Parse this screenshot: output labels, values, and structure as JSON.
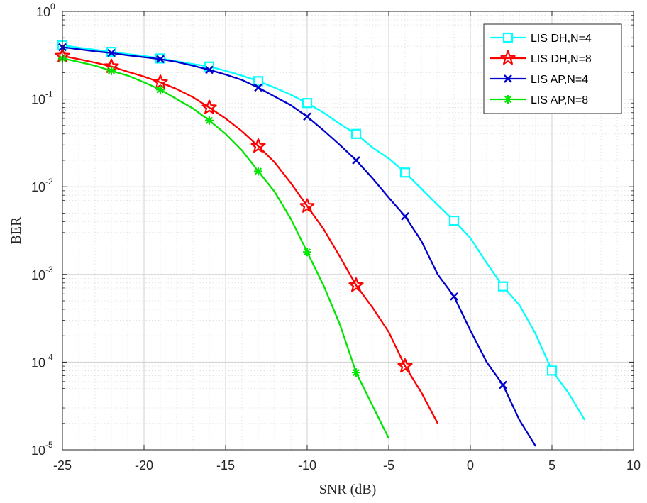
{
  "chart_data": {
    "type": "line",
    "title": "",
    "xlabel": "SNR (dB)",
    "ylabel": "BER",
    "xlim": [
      -25,
      10
    ],
    "ylim": [
      1e-05,
      1
    ],
    "yscale": "log",
    "grid": true,
    "minor_grid": true,
    "legend_position": "top-right",
    "x_ticks": [
      "-25",
      "-20",
      "-15",
      "-10",
      "-5",
      "0",
      "5",
      "10"
    ],
    "y_ticks": [
      {
        "base": "10",
        "exp": "-5"
      },
      {
        "base": "10",
        "exp": "-4"
      },
      {
        "base": "10",
        "exp": "-3"
      },
      {
        "base": "10",
        "exp": "-2"
      },
      {
        "base": "10",
        "exp": "-1"
      },
      {
        "base": "10",
        "exp": "0"
      }
    ],
    "series": [
      {
        "name": "LIS DH,N=4",
        "color": "#00ffff",
        "marker": "square",
        "x": [
          -25,
          -24,
          -23,
          -22,
          -21,
          -20,
          -19,
          -18,
          -17,
          -16,
          -15,
          -14,
          -13,
          -12,
          -11,
          -10,
          -9,
          -8,
          -7,
          -6,
          -5,
          -4,
          -3,
          -2,
          -1,
          0,
          1,
          2,
          3,
          4,
          5,
          6,
          7
        ],
        "y": [
          0.41,
          0.385,
          0.365,
          0.345,
          0.325,
          0.31,
          0.29,
          0.27,
          0.25,
          0.235,
          0.21,
          0.185,
          0.16,
          0.135,
          0.112,
          0.09,
          0.07,
          0.052,
          0.04,
          0.028,
          0.021,
          0.0145,
          0.0095,
          0.0062,
          0.0041,
          0.0026,
          0.00135,
          0.00073,
          0.00045,
          0.00021,
          8e-05,
          4.5e-05,
          2.2e-05
        ],
        "marker_indices": [
          0,
          3,
          6,
          9,
          12,
          15,
          18,
          21,
          24,
          27,
          30
        ]
      },
      {
        "name": "LIS DH,N=8",
        "color": "#ff0000",
        "marker": "pentagram",
        "x": [
          -25,
          -24,
          -23,
          -22,
          -21,
          -20,
          -19,
          -18,
          -17,
          -16,
          -15,
          -14,
          -13,
          -12,
          -11,
          -10,
          -9,
          -8,
          -7,
          -6,
          -5,
          -4,
          -3,
          -2
        ],
        "y": [
          0.31,
          0.285,
          0.26,
          0.235,
          0.205,
          0.18,
          0.155,
          0.13,
          0.105,
          0.08,
          0.06,
          0.043,
          0.029,
          0.019,
          0.011,
          0.006,
          0.0033,
          0.0016,
          0.00075,
          0.00042,
          0.00022,
          9e-05,
          4.5e-05,
          2e-05
        ],
        "marker_indices": [
          0,
          3,
          6,
          9,
          12,
          15,
          18,
          21
        ]
      },
      {
        "name": "LIS AP,N=4",
        "color": "#0000cd",
        "marker": "x",
        "x": [
          -25,
          -24,
          -23,
          -22,
          -21,
          -20,
          -19,
          -18,
          -17,
          -16,
          -15,
          -14,
          -13,
          -12,
          -11,
          -10,
          -9,
          -8,
          -7,
          -6,
          -5,
          -4,
          -3,
          -2,
          -1,
          0,
          1,
          2,
          3,
          4
        ],
        "y": [
          0.39,
          0.37,
          0.35,
          0.335,
          0.315,
          0.3,
          0.285,
          0.265,
          0.24,
          0.215,
          0.19,
          0.165,
          0.135,
          0.107,
          0.085,
          0.063,
          0.044,
          0.03,
          0.02,
          0.0125,
          0.0075,
          0.0046,
          0.0024,
          0.001,
          0.00056,
          0.00023,
          0.0001,
          5.5e-05,
          2.2e-05,
          1.1e-05
        ],
        "marker_indices": [
          0,
          3,
          6,
          9,
          12,
          15,
          18,
          21,
          24,
          27
        ]
      },
      {
        "name": "LIS AP,N=8",
        "color": "#00e600",
        "marker": "asterisk",
        "x": [
          -25,
          -24,
          -23,
          -22,
          -21,
          -20,
          -19,
          -18,
          -17,
          -16,
          -15,
          -14,
          -13,
          -12,
          -11,
          -10,
          -9,
          -8,
          -7,
          -6,
          -5
        ],
        "y": [
          0.29,
          0.265,
          0.24,
          0.21,
          0.185,
          0.155,
          0.128,
          0.1,
          0.078,
          0.057,
          0.04,
          0.026,
          0.015,
          0.0088,
          0.0043,
          0.0018,
          0.00075,
          0.00027,
          7.6e-05,
          3.2e-05,
          1.35e-05
        ],
        "marker_indices": [
          0,
          3,
          6,
          9,
          12,
          15,
          18
        ]
      }
    ]
  }
}
